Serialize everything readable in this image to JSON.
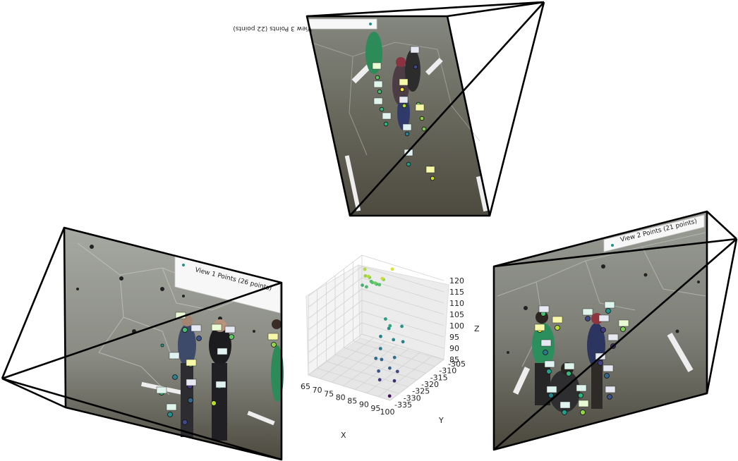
{
  "views": {
    "view1": {
      "legend": "View 1 Points (26 points)"
    },
    "view2": {
      "legend": "View 2 Points (21 points)"
    },
    "view3": {
      "legend": "View 3 Points (22 points)"
    }
  },
  "colors": {
    "frustum": "#000000",
    "wall": "#8d9088",
    "floor": "#5f5c4e",
    "grid": "#dddddd",
    "pane": "#f2f2f2"
  },
  "chart_data": {
    "type": "scatter",
    "title": "",
    "xlabel": "X",
    "ylabel": "Y",
    "zlabel": "Z",
    "x_ticks": [
      "65",
      "70",
      "75",
      "80",
      "85",
      "90",
      "95",
      "100"
    ],
    "y_ticks": [
      "-305",
      "-310",
      "-315",
      "-320",
      "-325",
      "-330",
      "-335"
    ],
    "z_ticks": [
      "120",
      "115",
      "110",
      "105",
      "100",
      "95",
      "90",
      "85"
    ],
    "xlim": [
      65,
      100
    ],
    "ylim": [
      -335,
      -305
    ],
    "zlim": [
      85,
      120
    ],
    "grid": true,
    "colormap": "viridis",
    "points": [
      {
        "x": 67,
        "y": -306,
        "z": 115,
        "c": 0.88
      },
      {
        "x": 68,
        "y": -307,
        "z": 113,
        "c": 0.84
      },
      {
        "x": 69,
        "y": -306,
        "z": 112,
        "c": 0.8
      },
      {
        "x": 70,
        "y": -308,
        "z": 114,
        "c": 0.9
      },
      {
        "x": 71,
        "y": -307,
        "z": 111,
        "c": 0.74
      },
      {
        "x": 72,
        "y": -309,
        "z": 113,
        "c": 0.7
      },
      {
        "x": 72,
        "y": -306,
        "z": 110,
        "c": 0.66
      },
      {
        "x": 73,
        "y": -308,
        "z": 112,
        "c": 0.78
      },
      {
        "x": 74,
        "y": -307,
        "z": 111,
        "c": 0.72
      },
      {
        "x": 75,
        "y": -306,
        "z": 113,
        "c": 0.82
      },
      {
        "x": 70,
        "y": -309,
        "z": 110,
        "c": 0.68
      },
      {
        "x": 76,
        "y": -308,
        "z": 115,
        "c": 0.92
      },
      {
        "x": 78,
        "y": -305,
        "z": 118,
        "c": 0.95
      },
      {
        "x": 69,
        "y": -310,
        "z": 111,
        "c": 0.64
      },
      {
        "x": 85,
        "y": -318,
        "z": 106,
        "c": 0.55
      },
      {
        "x": 88,
        "y": -320,
        "z": 104,
        "c": 0.5
      },
      {
        "x": 90,
        "y": -322,
        "z": 107,
        "c": 0.58
      },
      {
        "x": 92,
        "y": -318,
        "z": 105,
        "c": 0.52
      },
      {
        "x": 93,
        "y": -324,
        "z": 103,
        "c": 0.46
      },
      {
        "x": 86,
        "y": -322,
        "z": 101,
        "c": 0.44
      },
      {
        "x": 89,
        "y": -326,
        "z": 99,
        "c": 0.4
      },
      {
        "x": 94,
        "y": -320,
        "z": 100,
        "c": 0.42
      },
      {
        "x": 95,
        "y": -326,
        "z": 97,
        "c": 0.36
      },
      {
        "x": 91,
        "y": -328,
        "z": 96,
        "c": 0.32
      },
      {
        "x": 96,
        "y": -330,
        "z": 95,
        "c": 0.3
      },
      {
        "x": 87,
        "y": -326,
        "z": 94,
        "c": 0.34
      },
      {
        "x": 92,
        "y": -331,
        "z": 93,
        "c": 0.26
      },
      {
        "x": 97,
        "y": -327,
        "z": 92,
        "c": 0.22
      },
      {
        "x": 94,
        "y": -333,
        "z": 91,
        "c": 0.18
      },
      {
        "x": 98,
        "y": -330,
        "z": 90,
        "c": 0.14
      },
      {
        "x": 99,
        "y": -334,
        "z": 86,
        "c": 0.04
      }
    ]
  }
}
